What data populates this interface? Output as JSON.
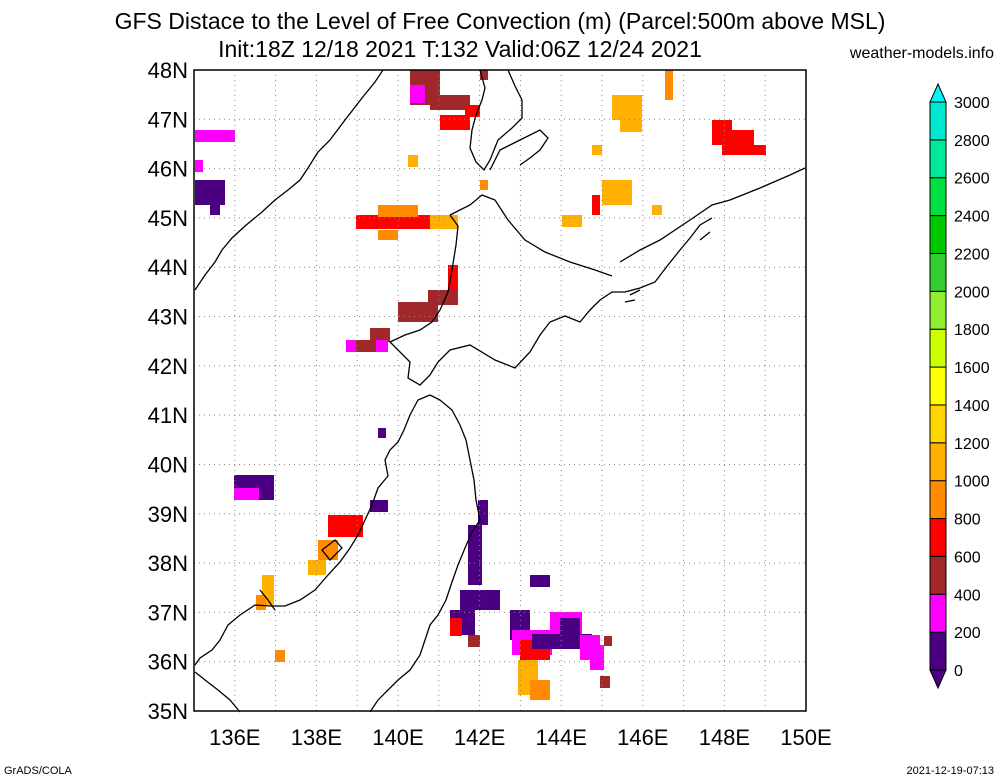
{
  "title_line1": "GFS Distace to the Level of Free Convection (m) (Parcel:500m above MSL)",
  "title_line2": "Init:18Z 12/18 2021 T:132 Valid:06Z 12/24 2021",
  "site": "weather-models.info",
  "footer_left": "GrADS/COLA",
  "footer_right": "2021-12-19-07:13",
  "lat_labels": [
    "48N",
    "47N",
    "46N",
    "45N",
    "44N",
    "43N",
    "42N",
    "41N",
    "40N",
    "39N",
    "38N",
    "37N",
    "36N",
    "35N"
  ],
  "lon_labels": [
    "136E",
    "138E",
    "140E",
    "142E",
    "144E",
    "146E",
    "148E",
    "150E"
  ],
  "colorbar": {
    "labels": [
      "0",
      "200",
      "400",
      "600",
      "800",
      "1000",
      "1200",
      "1400",
      "1600",
      "1800",
      "2000",
      "2200",
      "2400",
      "2600",
      "2800",
      "3000"
    ],
    "colors": [
      "#4b0082",
      "#ff00ff",
      "#a0282a",
      "#ff0000",
      "#ff8c00",
      "#ffb000",
      "#ffd400",
      "#ffff00",
      "#ccff00",
      "#90ee30",
      "#32cd32",
      "#00c800",
      "#00e040",
      "#00e89a",
      "#00e8d0",
      "#00f5f5"
    ]
  },
  "map": {
    "lon_range": [
      135,
      150
    ],
    "lat_range": [
      35,
      48
    ]
  }
}
